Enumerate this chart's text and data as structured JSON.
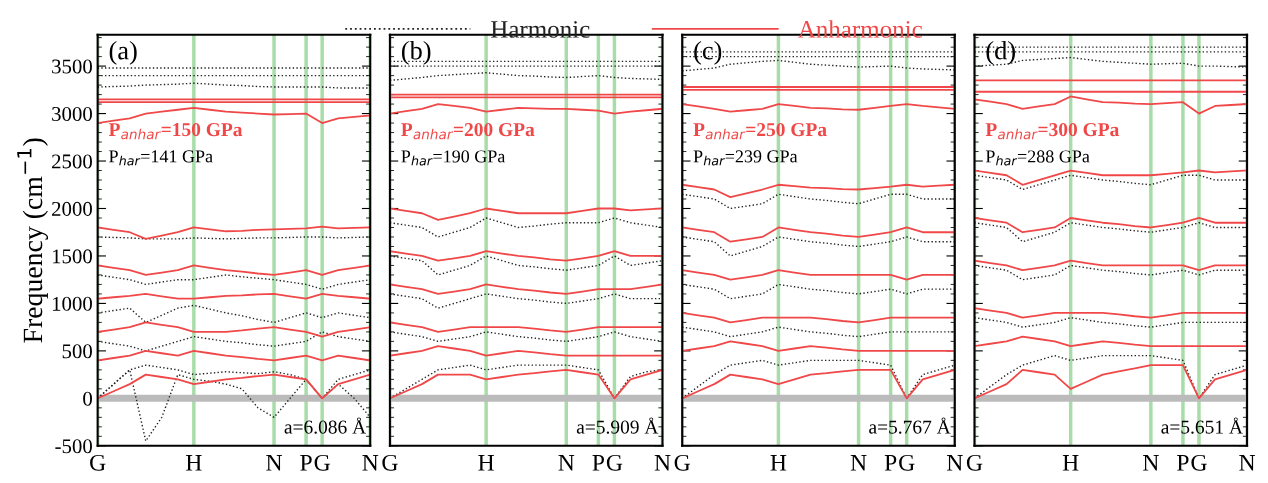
{
  "chart_data": [
    {
      "type": "line",
      "ylabel": "Frequency (cm$^{−1}$)",
      "legend": "top",
      "line_style": "solid",
      "grid": "x",
      "categories": [
        "G",
        null,
        null,
        null,
        null,
        null,
        "H",
        null,
        null,
        null,
        null,
        "N",
        null,
        "P",
        "G",
        null,
        null,
        "N"
      ],
      "ylim": [
        -500,
        3830
      ],
      "yticks": [
        -500,
        0,
        500,
        1000,
        1500,
        2000,
        2500,
        3000,
        3500
      ],
      "ref_lines": [
        {
          "axis": "y",
          "value": 0,
          "color": "#bbbbbb"
        }
      ],
      "annotations": [
        "(a)",
        "P$_{anhar}$=150 GPa",
        "P$_{har}$=141 GPa",
        "a=6.086 Å"
      ],
      "series": [
        {
          "name": "Harmonic",
          "color": "#222222",
          "line_style": "dotted",
          "values": [
            3480,
            3480,
            3480,
            3480,
            3480,
            3480,
            3480,
            3480,
            3480,
            3480,
            3480,
            3480,
            3480,
            3480,
            3480,
            3480,
            3480,
            3480
          ]
        },
        {
          "color": "#222222",
          "line_style": "dotted",
          "values": [
            3400,
            3400,
            3400,
            3400,
            3400,
            3400,
            3400,
            3400,
            3400,
            3400,
            3400,
            3400,
            3400,
            3400,
            3400,
            3400,
            3400,
            3400
          ]
        },
        {
          "color": "#222222",
          "line_style": "dotted",
          "values": [
            3280,
            3285,
            3290,
            3300,
            3305,
            3310,
            3320,
            3310,
            3300,
            3295,
            3285,
            3280,
            3280,
            3280,
            3280,
            3270,
            3270,
            3270
          ]
        },
        {
          "color": "#222222",
          "line_style": "dotted",
          "values": [
            1700,
            1695,
            1690,
            1680,
            1680,
            1680,
            1690,
            1685,
            1680,
            1685,
            1690,
            1690,
            1695,
            1700,
            1700,
            1690,
            1695,
            1700
          ]
        },
        {
          "color": "#222222",
          "line_style": "dotted",
          "values": [
            1300,
            1275,
            1250,
            1200,
            1225,
            1250,
            1250,
            1275,
            1300,
            1280,
            1265,
            1250,
            1225,
            1200,
            1150,
            1200,
            1225,
            1250
          ]
        },
        {
          "color": "#222222",
          "line_style": "dotted",
          "values": [
            900,
            925,
            950,
            800,
            875,
            950,
            980,
            940,
            900,
            870,
            830,
            800,
            850,
            900,
            850,
            900,
            875,
            850
          ]
        },
        {
          "color": "#222222",
          "line_style": "dotted",
          "values": [
            600,
            575,
            550,
            500,
            550,
            600,
            650,
            625,
            600,
            585,
            565,
            550,
            575,
            600,
            700,
            650,
            625,
            600
          ]
        },
        {
          "color": "#222222",
          "line_style": "dotted",
          "values": [
            0,
            150,
            300,
            -450,
            -200,
            250,
            200,
            180,
            150,
            100,
            -100,
            -200,
            0,
            200,
            0,
            150,
            0,
            -200
          ]
        },
        {
          "color": "#222222",
          "line_style": "dotted",
          "values": [
            0,
            150,
            300,
            350,
            325,
            300,
            250,
            265,
            280,
            270,
            260,
            280,
            250,
            200,
            0,
            200,
            250,
            300
          ]
        },
        {
          "name": "Anharmonic",
          "color": "#f04848",
          "values": [
            3150,
            3150,
            3150,
            3150,
            3150,
            3150,
            3150,
            3150,
            3150,
            3150,
            3150,
            3150,
            3150,
            3150,
            3150,
            3150,
            3150,
            3150
          ]
        },
        {
          "color": "#f04848",
          "values": [
            3120,
            3120,
            3120,
            3120,
            3120,
            3120,
            3120,
            3120,
            3120,
            3120,
            3120,
            3120,
            3120,
            3120,
            3120,
            3120,
            3120,
            3120
          ]
        },
        {
          "color": "#f04848",
          "values": [
            2900,
            2925,
            2950,
            3000,
            3020,
            3040,
            3060,
            3040,
            3020,
            3010,
            3000,
            2990,
            2995,
            3000,
            2900,
            2950,
            2965,
            2980
          ]
        },
        {
          "color": "#f04848",
          "values": [
            1800,
            1775,
            1750,
            1680,
            1715,
            1750,
            1800,
            1780,
            1760,
            1765,
            1775,
            1780,
            1785,
            1790,
            1810,
            1790,
            1795,
            1800
          ]
        },
        {
          "color": "#f04848",
          "values": [
            1400,
            1375,
            1350,
            1300,
            1325,
            1350,
            1400,
            1375,
            1350,
            1335,
            1315,
            1300,
            1325,
            1350,
            1300,
            1350,
            1375,
            1400
          ]
        },
        {
          "color": "#f04848",
          "values": [
            1050,
            1065,
            1080,
            1100,
            1075,
            1050,
            1050,
            1065,
            1080,
            1085,
            1095,
            1100,
            1075,
            1050,
            1100,
            1080,
            1065,
            1050
          ]
        },
        {
          "color": "#f04848",
          "values": [
            700,
            725,
            750,
            800,
            775,
            750,
            700,
            700,
            700,
            715,
            735,
            750,
            725,
            700,
            650,
            700,
            725,
            750
          ]
        },
        {
          "color": "#f04848",
          "values": [
            400,
            425,
            450,
            500,
            475,
            450,
            500,
            475,
            450,
            435,
            415,
            400,
            425,
            450,
            400,
            450,
            425,
            400
          ]
        },
        {
          "color": "#f04848",
          "values": [
            0,
            75,
            150,
            250,
            225,
            200,
            150,
            175,
            200,
            215,
            235,
            250,
            225,
            200,
            0,
            150,
            200,
            250
          ]
        }
      ]
    },
    {
      "type": "line",
      "tick_labels": "x",
      "line_style": "solid",
      "grid": "x",
      "categories": [
        "G",
        null,
        null,
        null,
        null,
        null,
        "H",
        null,
        null,
        null,
        null,
        "N",
        null,
        "P",
        "G",
        null,
        null,
        "N"
      ],
      "ylim": [
        -500,
        3830
      ],
      "yticks": [
        -500,
        0,
        500,
        1000,
        1500,
        2000,
        2500,
        3000,
        3500
      ],
      "ref_lines": [
        {
          "axis": "y",
          "value": 0,
          "color": "#bbbbbb"
        }
      ],
      "annotations": [
        "(b)",
        "P$_{anhar}$=200 GPa",
        "P$_{har}$=190 GPa",
        "a=5.909 Å"
      ],
      "series": [
        {
          "color": "#222222",
          "line_style": "dotted",
          "values": [
            3550,
            3550,
            3550,
            3550,
            3550,
            3550,
            3550,
            3550,
            3550,
            3550,
            3550,
            3550,
            3550,
            3550,
            3550,
            3550,
            3550,
            3550
          ]
        },
        {
          "color": "#222222",
          "line_style": "dotted",
          "values": [
            3500,
            3500,
            3500,
            3500,
            3500,
            3500,
            3500,
            3500,
            3500,
            3500,
            3500,
            3500,
            3500,
            3500,
            3500,
            3500,
            3500,
            3500
          ]
        },
        {
          "color": "#222222",
          "line_style": "dotted",
          "values": [
            3350,
            3365,
            3380,
            3400,
            3410,
            3420,
            3430,
            3415,
            3400,
            3395,
            3385,
            3380,
            3390,
            3400,
            3380,
            3370,
            3365,
            3360
          ]
        },
        {
          "color": "#222222",
          "line_style": "dotted",
          "values": [
            1850,
            1825,
            1800,
            1700,
            1750,
            1800,
            1900,
            1850,
            1800,
            1815,
            1835,
            1850,
            1850,
            1850,
            1900,
            1850,
            1825,
            1800
          ]
        },
        {
          "color": "#222222",
          "line_style": "dotted",
          "values": [
            1500,
            1475,
            1450,
            1300,
            1350,
            1400,
            1500,
            1450,
            1400,
            1385,
            1365,
            1350,
            1375,
            1400,
            1500,
            1400,
            1425,
            1450
          ]
        },
        {
          "color": "#222222",
          "line_style": "dotted",
          "values": [
            1100,
            1075,
            1050,
            950,
            1000,
            1050,
            1100,
            1075,
            1050,
            1035,
            1015,
            1000,
            1025,
            1050,
            1100,
            1050,
            1050,
            1050
          ]
        },
        {
          "color": "#222222",
          "line_style": "dotted",
          "values": [
            700,
            675,
            650,
            600,
            625,
            650,
            700,
            675,
            650,
            635,
            615,
            600,
            625,
            650,
            700,
            650,
            625,
            600
          ]
        },
        {
          "color": "#222222",
          "line_style": "dotted",
          "values": [
            0,
            100,
            200,
            300,
            325,
            350,
            300,
            325,
            350,
            350,
            350,
            350,
            325,
            300,
            0,
            230,
            280,
            300
          ]
        },
        {
          "color": "#f04848",
          "values": [
            3200,
            3200,
            3200,
            3200,
            3200,
            3200,
            3200,
            3200,
            3200,
            3200,
            3200,
            3200,
            3200,
            3200,
            3200,
            3200,
            3200,
            3200
          ]
        },
        {
          "color": "#f04848",
          "values": [
            3170,
            3170,
            3170,
            3170,
            3170,
            3170,
            3170,
            3170,
            3170,
            3170,
            3170,
            3170,
            3170,
            3170,
            3170,
            3170,
            3170,
            3170
          ]
        },
        {
          "color": "#f04848",
          "values": [
            3000,
            3025,
            3050,
            3100,
            3080,
            3060,
            3020,
            3040,
            3060,
            3055,
            3050,
            3050,
            3040,
            3030,
            3000,
            3020,
            3035,
            3050
          ]
        },
        {
          "color": "#f04848",
          "values": [
            2000,
            1975,
            1950,
            1880,
            1915,
            1950,
            2000,
            1975,
            1950,
            1950,
            1950,
            1950,
            1975,
            2000,
            2000,
            1980,
            1990,
            2000
          ]
        },
        {
          "color": "#f04848",
          "values": [
            1550,
            1525,
            1500,
            1450,
            1475,
            1500,
            1550,
            1525,
            1500,
            1485,
            1465,
            1450,
            1475,
            1500,
            1550,
            1500,
            1500,
            1500
          ]
        },
        {
          "color": "#f04848",
          "values": [
            1200,
            1175,
            1150,
            1100,
            1125,
            1150,
            1200,
            1175,
            1150,
            1135,
            1115,
            1100,
            1125,
            1150,
            1150,
            1150,
            1175,
            1200
          ]
        },
        {
          "color": "#f04848",
          "values": [
            800,
            775,
            750,
            700,
            725,
            750,
            750,
            750,
            750,
            735,
            715,
            700,
            725,
            750,
            750,
            750,
            750,
            750
          ]
        },
        {
          "color": "#f04848",
          "values": [
            450,
            475,
            500,
            550,
            525,
            500,
            450,
            475,
            500,
            485,
            465,
            450,
            450,
            450,
            450,
            450,
            450,
            450
          ]
        },
        {
          "color": "#f04848",
          "values": [
            0,
            75,
            150,
            250,
            250,
            250,
            200,
            225,
            250,
            265,
            285,
            300,
            275,
            250,
            0,
            200,
            250,
            300
          ]
        }
      ]
    },
    {
      "type": "line",
      "tick_labels": "x",
      "line_style": "solid",
      "grid": "x",
      "categories": [
        "G",
        null,
        null,
        null,
        null,
        null,
        "H",
        null,
        null,
        null,
        null,
        "N",
        null,
        "P",
        "G",
        null,
        null,
        "N"
      ],
      "ylim": [
        -500,
        3830
      ],
      "yticks": [
        -500,
        0,
        500,
        1000,
        1500,
        2000,
        2500,
        3000,
        3500
      ],
      "ref_lines": [
        {
          "axis": "y",
          "value": 0,
          "color": "#bbbbbb"
        }
      ],
      "annotations": [
        "(c)",
        "P$_{anhar}$=250 GPa",
        "P$_{har}$=239 GPa",
        "a=5.767 Å"
      ],
      "series": [
        {
          "color": "#222222",
          "line_style": "dotted",
          "values": [
            3650,
            3650,
            3650,
            3650,
            3650,
            3650,
            3650,
            3650,
            3650,
            3650,
            3650,
            3650,
            3650,
            3650,
            3650,
            3650,
            3650,
            3650
          ]
        },
        {
          "color": "#222222",
          "line_style": "dotted",
          "values": [
            3600,
            3600,
            3600,
            3600,
            3600,
            3600,
            3600,
            3600,
            3600,
            3600,
            3600,
            3600,
            3600,
            3600,
            3600,
            3600,
            3600,
            3600
          ]
        },
        {
          "color": "#222222",
          "line_style": "dotted",
          "values": [
            3450,
            3465,
            3480,
            3520,
            3535,
            3550,
            3560,
            3540,
            3520,
            3510,
            3500,
            3490,
            3495,
            3500,
            3480,
            3470,
            3465,
            3460
          ]
        },
        {
          "color": "#222222",
          "line_style": "dotted",
          "values": [
            2150,
            2125,
            2100,
            2000,
            2025,
            2050,
            2150,
            2125,
            2100,
            2085,
            2065,
            2050,
            2100,
            2150,
            2150,
            2100,
            2100,
            2100
          ]
        },
        {
          "color": "#222222",
          "line_style": "dotted",
          "values": [
            1700,
            1675,
            1650,
            1500,
            1550,
            1600,
            1700,
            1675,
            1650,
            1635,
            1615,
            1600,
            1625,
            1650,
            1700,
            1650,
            1650,
            1650
          ]
        },
        {
          "color": "#222222",
          "line_style": "dotted",
          "values": [
            1200,
            1175,
            1150,
            1050,
            1075,
            1100,
            1200,
            1175,
            1150,
            1135,
            1115,
            1100,
            1125,
            1150,
            1100,
            1150,
            1150,
            1150
          ]
        },
        {
          "color": "#222222",
          "line_style": "dotted",
          "values": [
            750,
            725,
            700,
            650,
            675,
            700,
            750,
            725,
            700,
            685,
            665,
            650,
            675,
            700,
            700,
            700,
            700,
            700
          ]
        },
        {
          "color": "#222222",
          "line_style": "dotted",
          "values": [
            0,
            125,
            250,
            350,
            375,
            400,
            350,
            375,
            400,
            400,
            400,
            400,
            375,
            350,
            0,
            250,
            300,
            350
          ]
        },
        {
          "color": "#f04848",
          "values": [
            3280,
            3280,
            3280,
            3280,
            3280,
            3280,
            3280,
            3280,
            3280,
            3280,
            3280,
            3280,
            3280,
            3280,
            3280,
            3280,
            3280,
            3280
          ]
        },
        {
          "color": "#f04848",
          "values": [
            3250,
            3250,
            3250,
            3250,
            3250,
            3250,
            3250,
            3250,
            3250,
            3250,
            3250,
            3250,
            3250,
            3250,
            3250,
            3250,
            3250,
            3250
          ]
        },
        {
          "color": "#f04848",
          "values": [
            3100,
            3075,
            3050,
            3020,
            3035,
            3050,
            3100,
            3080,
            3060,
            3055,
            3045,
            3040,
            3060,
            3080,
            3100,
            3080,
            3065,
            3050
          ]
        },
        {
          "color": "#f04848",
          "values": [
            2250,
            2225,
            2200,
            2120,
            2160,
            2200,
            2250,
            2235,
            2220,
            2215,
            2205,
            2200,
            2215,
            2230,
            2250,
            2230,
            2240,
            2250
          ]
        },
        {
          "color": "#f04848",
          "values": [
            1800,
            1775,
            1750,
            1650,
            1675,
            1700,
            1800,
            1775,
            1750,
            1735,
            1715,
            1700,
            1725,
            1750,
            1800,
            1750,
            1750,
            1750
          ]
        },
        {
          "color": "#f04848",
          "values": [
            1350,
            1325,
            1300,
            1250,
            1275,
            1300,
            1350,
            1325,
            1300,
            1300,
            1300,
            1300,
            1300,
            1300,
            1250,
            1300,
            1300,
            1300
          ]
        },
        {
          "color": "#f04848",
          "values": [
            900,
            875,
            850,
            800,
            825,
            850,
            850,
            850,
            850,
            835,
            815,
            800,
            825,
            850,
            850,
            850,
            850,
            850
          ]
        },
        {
          "color": "#f04848",
          "values": [
            500,
            525,
            550,
            600,
            575,
            550,
            500,
            525,
            550,
            535,
            515,
            500,
            500,
            500,
            500,
            500,
            500,
            500
          ]
        },
        {
          "color": "#f04848",
          "values": [
            0,
            75,
            150,
            250,
            225,
            200,
            150,
            200,
            250,
            265,
            285,
            300,
            300,
            300,
            0,
            200,
            250,
            300
          ]
        }
      ]
    },
    {
      "type": "line",
      "tick_labels": "x",
      "line_style": "solid",
      "grid": "x",
      "categories": [
        "G",
        null,
        null,
        null,
        null,
        null,
        "H",
        null,
        null,
        null,
        null,
        "N",
        null,
        "P",
        "G",
        null,
        null,
        "N"
      ],
      "ylim": [
        -500,
        3830
      ],
      "yticks": [
        -500,
        0,
        500,
        1000,
        1500,
        2000,
        2500,
        3000,
        3500
      ],
      "ref_lines": [
        {
          "axis": "y",
          "value": 0,
          "color": "#bbbbbb"
        }
      ],
      "annotations": [
        "(d)",
        "P$_{anhar}$=300 GPa",
        "P$_{har}$=288 GPa",
        "a=5.651 Å"
      ],
      "series": [
        {
          "color": "#222222",
          "line_style": "dotted",
          "values": [
            3700,
            3700,
            3700,
            3700,
            3700,
            3700,
            3700,
            3700,
            3700,
            3700,
            3700,
            3700,
            3700,
            3700,
            3700,
            3700,
            3700,
            3700
          ]
        },
        {
          "color": "#222222",
          "line_style": "dotted",
          "values": [
            3650,
            3650,
            3650,
            3650,
            3650,
            3650,
            3650,
            3650,
            3650,
            3650,
            3650,
            3650,
            3650,
            3650,
            3650,
            3650,
            3650,
            3650
          ]
        },
        {
          "color": "#222222",
          "line_style": "dotted",
          "values": [
            3500,
            3510,
            3520,
            3560,
            3570,
            3580,
            3590,
            3570,
            3550,
            3540,
            3530,
            3520,
            3525,
            3530,
            3500,
            3500,
            3495,
            3490
          ]
        },
        {
          "color": "#222222",
          "line_style": "dotted",
          "values": [
            2350,
            2325,
            2300,
            2200,
            2250,
            2300,
            2350,
            2325,
            2300,
            2285,
            2265,
            2250,
            2300,
            2350,
            2350,
            2300,
            2300,
            2300
          ]
        },
        {
          "color": "#222222",
          "line_style": "dotted",
          "values": [
            1850,
            1825,
            1800,
            1650,
            1700,
            1750,
            1850,
            1825,
            1800,
            1785,
            1765,
            1750,
            1775,
            1800,
            1850,
            1800,
            1800,
            1800
          ]
        },
        {
          "color": "#222222",
          "line_style": "dotted",
          "values": [
            1400,
            1375,
            1350,
            1250,
            1275,
            1300,
            1400,
            1375,
            1350,
            1335,
            1315,
            1300,
            1325,
            1350,
            1300,
            1350,
            1350,
            1350
          ]
        },
        {
          "color": "#222222",
          "line_style": "dotted",
          "values": [
            850,
            825,
            800,
            750,
            775,
            800,
            850,
            825,
            800,
            785,
            765,
            750,
            775,
            800,
            800,
            800,
            800,
            800
          ]
        },
        {
          "color": "#222222",
          "line_style": "dotted",
          "values": [
            0,
            125,
            250,
            350,
            400,
            450,
            400,
            425,
            450,
            450,
            450,
            450,
            425,
            400,
            0,
            250,
            300,
            350
          ]
        },
        {
          "color": "#f04848",
          "values": [
            3350,
            3350,
            3350,
            3350,
            3350,
            3350,
            3350,
            3350,
            3350,
            3350,
            3350,
            3350,
            3350,
            3350,
            3350,
            3350,
            3350,
            3350
          ]
        },
        {
          "color": "#f04848",
          "values": [
            3230,
            3230,
            3230,
            3230,
            3230,
            3230,
            3230,
            3230,
            3230,
            3230,
            3230,
            3230,
            3230,
            3230,
            3230,
            3230,
            3230,
            3230
          ]
        },
        {
          "color": "#f04848",
          "values": [
            3150,
            3125,
            3100,
            3050,
            3075,
            3100,
            3180,
            3150,
            3120,
            3115,
            3105,
            3100,
            3110,
            3120,
            3000,
            3080,
            3090,
            3100
          ]
        },
        {
          "color": "#f04848",
          "values": [
            2400,
            2375,
            2350,
            2250,
            2300,
            2350,
            2400,
            2375,
            2350,
            2350,
            2350,
            2350,
            2365,
            2380,
            2400,
            2380,
            2390,
            2400
          ]
        },
        {
          "color": "#f04848",
          "values": [
            1900,
            1875,
            1850,
            1750,
            1775,
            1800,
            1900,
            1875,
            1850,
            1835,
            1815,
            1800,
            1825,
            1850,
            1900,
            1850,
            1850,
            1850
          ]
        },
        {
          "color": "#f04848",
          "values": [
            1450,
            1425,
            1400,
            1350,
            1375,
            1400,
            1450,
            1425,
            1400,
            1400,
            1400,
            1400,
            1400,
            1400,
            1350,
            1400,
            1400,
            1400
          ]
        },
        {
          "color": "#f04848",
          "values": [
            950,
            925,
            900,
            850,
            875,
            900,
            900,
            900,
            900,
            885,
            865,
            850,
            875,
            900,
            900,
            900,
            900,
            900
          ]
        },
        {
          "color": "#f04848",
          "values": [
            550,
            575,
            600,
            650,
            625,
            600,
            550,
            575,
            600,
            585,
            565,
            550,
            550,
            550,
            550,
            550,
            550,
            550
          ]
        },
        {
          "color": "#f04848",
          "values": [
            0,
            75,
            150,
            300,
            275,
            250,
            100,
            175,
            250,
            285,
            315,
            350,
            350,
            350,
            0,
            200,
            250,
            300
          ]
        }
      ]
    }
  ]
}
